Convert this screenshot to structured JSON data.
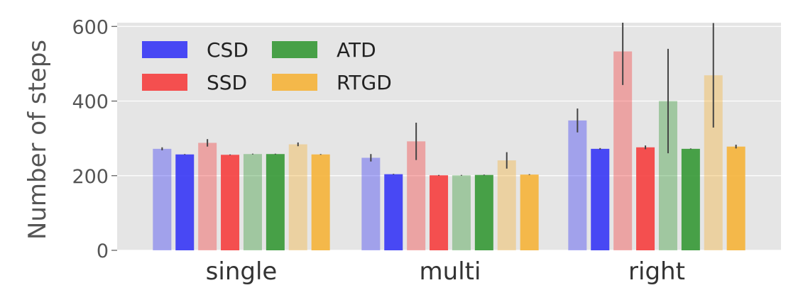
{
  "chart_data": {
    "type": "bar",
    "title": "",
    "xlabel": "",
    "ylabel": "Number of steps",
    "ylim": [
      0,
      610
    ],
    "yticks": [
      0,
      200,
      400,
      600
    ],
    "grid": true,
    "legend_position": "top-left",
    "categories": [
      "single",
      "multi",
      "right"
    ],
    "series": [
      {
        "name": "CSD",
        "color": "#3b3bf5",
        "variant": "light",
        "values": [
          272,
          248,
          348
        ],
        "err": [
          4,
          10,
          32
        ]
      },
      {
        "name": "CSD",
        "color": "#3b3bf5",
        "variant": "solid",
        "values": [
          257,
          204,
          272
        ],
        "err": [
          1,
          1,
          2
        ]
      },
      {
        "name": "SSD",
        "color": "#f54242",
        "variant": "light",
        "values": [
          288,
          292,
          533
        ],
        "err": [
          10,
          50,
          90
        ]
      },
      {
        "name": "SSD",
        "color": "#f54242",
        "variant": "solid",
        "values": [
          256,
          201,
          276
        ],
        "err": [
          1,
          1,
          5
        ]
      },
      {
        "name": "ATD",
        "color": "#3a9a3a",
        "variant": "light",
        "values": [
          258,
          201,
          400
        ],
        "err": [
          1,
          1,
          140
        ]
      },
      {
        "name": "ATD",
        "color": "#3a9a3a",
        "variant": "solid",
        "values": [
          258,
          202,
          272
        ],
        "err": [
          1,
          1,
          1
        ]
      },
      {
        "name": "RTGD",
        "color": "#f5b43d",
        "variant": "light",
        "values": [
          284,
          241,
          469
        ],
        "err": [
          5,
          22,
          140
        ]
      },
      {
        "name": "RTGD",
        "color": "#f5b43d",
        "variant": "solid",
        "values": [
          257,
          203,
          278
        ],
        "err": [
          1,
          1,
          5
        ]
      }
    ],
    "legend": [
      {
        "label": "CSD",
        "color": "#3b3bf5"
      },
      {
        "label": "ATD",
        "color": "#3a9a3a"
      },
      {
        "label": "SSD",
        "color": "#f54242"
      },
      {
        "label": "RTGD",
        "color": "#f5b43d"
      }
    ]
  }
}
